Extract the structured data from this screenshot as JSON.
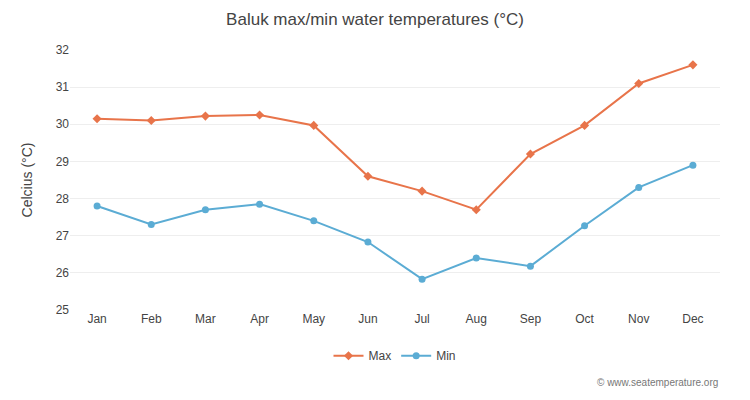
{
  "chart_data": {
    "type": "line",
    "title": "Baluk max/min water temperatures (°C)",
    "ylabel": "Celcius (°C)",
    "categories": [
      "Jan",
      "Feb",
      "Mar",
      "Apr",
      "May",
      "Jun",
      "Jul",
      "Aug",
      "Sep",
      "Oct",
      "Nov",
      "Dec"
    ],
    "series": [
      {
        "name": "Max",
        "color": "#E8744A",
        "marker": "diamond",
        "values": [
          30.15,
          30.1,
          30.22,
          30.25,
          29.97,
          28.6,
          28.2,
          27.7,
          29.2,
          29.97,
          31.1,
          31.6
        ]
      },
      {
        "name": "Min",
        "color": "#5BACD4",
        "marker": "circle",
        "values": [
          27.8,
          27.3,
          27.7,
          27.85,
          27.4,
          26.83,
          25.83,
          26.4,
          26.18,
          27.27,
          28.3,
          28.9
        ]
      }
    ],
    "ylim": [
      25,
      32
    ],
    "yticks": [
      25,
      26,
      27,
      28,
      29,
      30,
      31,
      32
    ],
    "grid": true,
    "legend": "bottom",
    "annotations": [
      "© www.seatemperature.org"
    ]
  }
}
